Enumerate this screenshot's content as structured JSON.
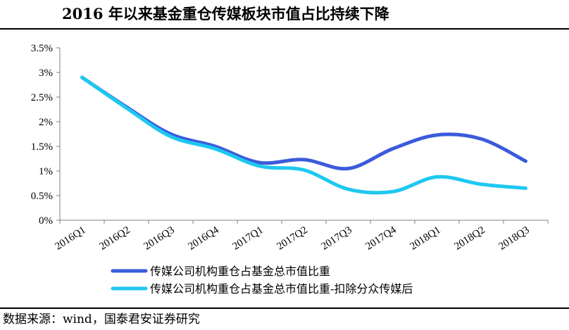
{
  "title": "2016 年以来基金重仓传媒板块市值占比持续下降",
  "source": "数据来源：wind，国泰君安证券研究",
  "chart_data": {
    "type": "line",
    "categories": [
      "2016Q1",
      "2016Q2",
      "2016Q3",
      "2016Q4",
      "2017Q1",
      "2017Q2",
      "2017Q3",
      "2017Q4",
      "2018Q1",
      "2018Q2",
      "2018Q3"
    ],
    "y_ticks": [
      "0%",
      "0.5%",
      "1%",
      "1.5%",
      "2%",
      "2.5%",
      "3%",
      "3.5%"
    ],
    "ylim": [
      0,
      3.5
    ],
    "series": [
      {
        "name": "传媒公司机构重仓占基金总市值比重",
        "color": "#3B5BDB",
        "values": [
          2.9,
          2.3,
          1.75,
          1.5,
          1.17,
          1.23,
          1.05,
          1.45,
          1.73,
          1.65,
          1.2
        ]
      },
      {
        "name": "传媒公司机构重仓占基金总市值比重-扣除分众传媒后",
        "color": "#1EC8F0",
        "values": [
          2.9,
          2.28,
          1.7,
          1.45,
          1.1,
          1.02,
          0.63,
          0.58,
          0.88,
          0.73,
          0.65
        ]
      }
    ],
    "grid": false,
    "legend_position": "bottom"
  }
}
